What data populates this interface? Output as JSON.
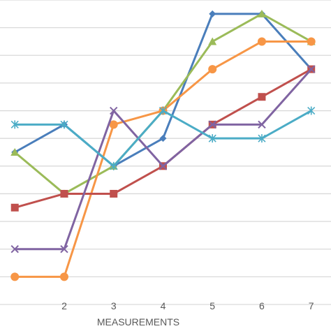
{
  "chart_data": {
    "type": "line",
    "xlabel": "MEASUREMENTS",
    "ylabel": "",
    "title": "",
    "grid": true,
    "x_range": [
      0.7,
      7.4
    ],
    "y_range": [
      0,
      11
    ],
    "x": [
      1,
      2,
      3,
      4,
      5,
      6,
      7
    ],
    "x_tick_labels": [
      "2",
      "3",
      "4",
      "5",
      "6",
      "7"
    ],
    "x_tick_values": [
      2,
      3,
      4,
      5,
      6,
      7
    ],
    "series": [
      {
        "color": "#4a7ebb",
        "marker": "diamond",
        "values": [
          5.5,
          6.5,
          5.0,
          6.0,
          10.5,
          10.5,
          8.5
        ]
      },
      {
        "color": "#9bbb59",
        "marker": "triangle",
        "values": [
          5.5,
          4.0,
          5.0,
          7.0,
          9.5,
          10.5,
          9.5
        ]
      },
      {
        "color": "#f79646",
        "marker": "circle",
        "values": [
          1.0,
          1.0,
          6.5,
          7.0,
          8.5,
          9.5,
          9.5
        ]
      },
      {
        "color": "#c0504d",
        "marker": "square",
        "values": [
          3.5,
          4.0,
          4.0,
          5.0,
          6.5,
          7.5,
          8.5
        ]
      },
      {
        "color": "#8064a2",
        "marker": "x",
        "values": [
          2.0,
          2.0,
          7.0,
          5.0,
          6.5,
          6.5,
          8.5
        ]
      },
      {
        "color": "#4bacc6",
        "marker": "star",
        "values": [
          6.5,
          6.5,
          5.0,
          7.0,
          6.0,
          6.0,
          7.0
        ]
      }
    ]
  }
}
